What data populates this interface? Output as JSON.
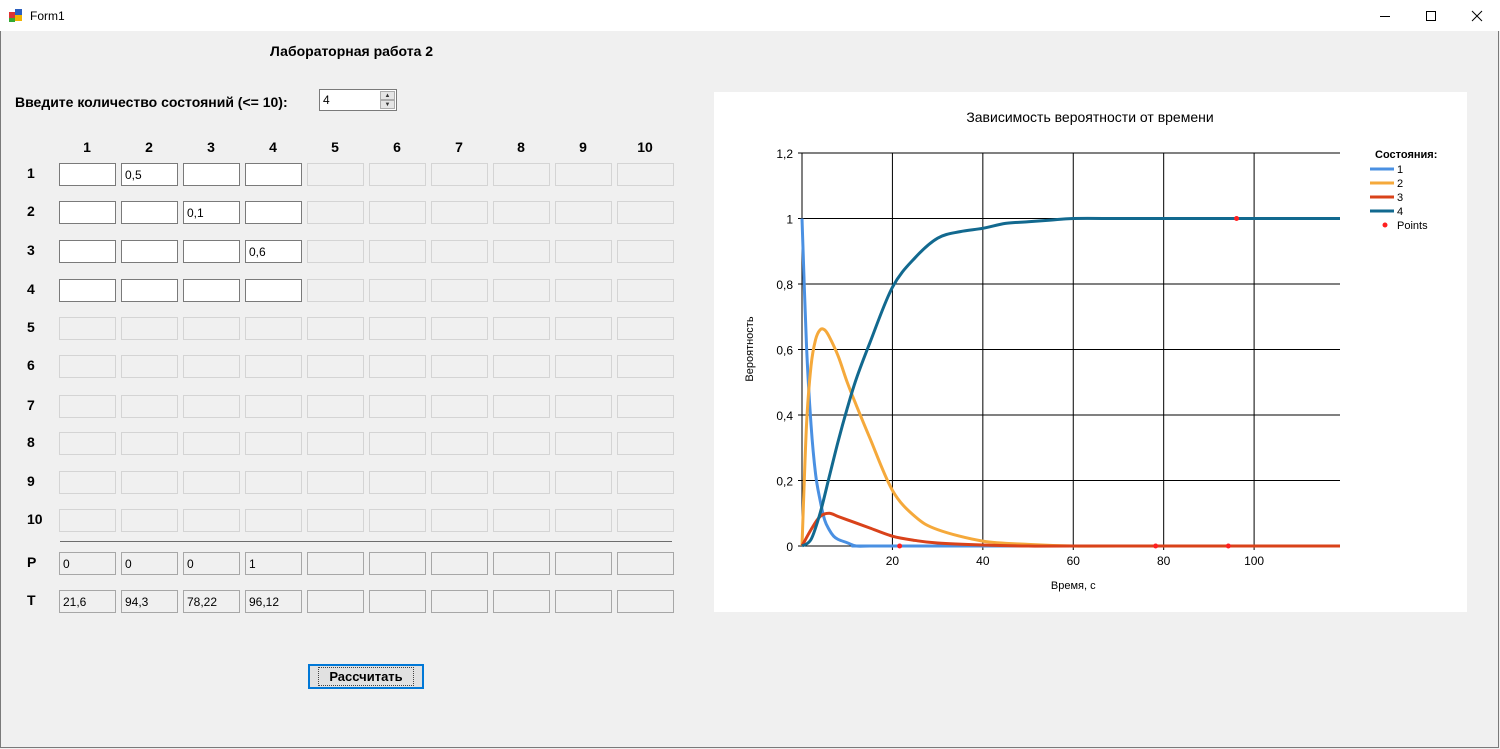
{
  "window": {
    "title": "Form1",
    "controls": {
      "minimize": "minimize-icon",
      "maximize": "maximize-icon",
      "close": "close-icon"
    }
  },
  "form": {
    "lab_title": "Лабораторная работа 2",
    "prompt": "Введите количество состояний (<= 10):",
    "states_count": "4",
    "col_headers": [
      "1",
      "2",
      "3",
      "4",
      "5",
      "6",
      "7",
      "8",
      "9",
      "10"
    ],
    "row_headers": [
      "1",
      "2",
      "3",
      "4",
      "5",
      "6",
      "7",
      "8",
      "9",
      "10"
    ],
    "active_size": 4,
    "matrix": [
      [
        "",
        "0,5",
        "",
        ""
      ],
      [
        "",
        "",
        "0,1",
        ""
      ],
      [
        "",
        "",
        "",
        "0,6"
      ],
      [
        "",
        "",
        "",
        ""
      ]
    ],
    "p_label": "P",
    "t_label": "T",
    "p_values": [
      "0",
      "0",
      "0",
      "1",
      "",
      "",
      "",
      "",
      "",
      ""
    ],
    "t_values": [
      "21,6",
      "94,3",
      "78,22",
      "96,12",
      "",
      "",
      "",
      "",
      "",
      ""
    ],
    "calc_button": "Рассчитать"
  },
  "chart_data": {
    "type": "line",
    "title": "Зависимость вероятности от времени",
    "xlabel": "Время, с",
    "ylabel": "Вероятность",
    "xlim": [
      0,
      119
    ],
    "ylim": [
      0,
      1.2
    ],
    "x_ticks": [
      "20",
      "40",
      "60",
      "80",
      "100"
    ],
    "y_ticks": [
      "0",
      "0,2",
      "0,4",
      "0,6",
      "0,8",
      "1",
      "1,2"
    ],
    "grid": true,
    "legend_title": "Состояния:",
    "legend_position": "top-right",
    "series": [
      {
        "name": "1",
        "color": "#4a90e2",
        "x": [
          0,
          1,
          2,
          3,
          4,
          5,
          6,
          7,
          8,
          10,
          12,
          15,
          20,
          119
        ],
        "y": [
          1,
          0.61,
          0.37,
          0.22,
          0.14,
          0.08,
          0.05,
          0.03,
          0.02,
          0.01,
          0,
          0,
          0,
          0
        ]
      },
      {
        "name": "2",
        "color": "#f5a93b",
        "x": [
          0,
          1,
          2,
          3,
          4,
          5,
          6,
          8,
          10,
          12,
          15,
          20,
          25,
          30,
          40,
          50,
          60,
          70,
          119
        ],
        "y": [
          0,
          0.37,
          0.55,
          0.63,
          0.66,
          0.66,
          0.64,
          0.58,
          0.5,
          0.43,
          0.33,
          0.17,
          0.09,
          0.05,
          0.015,
          0.005,
          0,
          0,
          0
        ]
      },
      {
        "name": "3",
        "color": "#d9421a",
        "x": [
          0,
          2,
          4,
          6,
          8,
          10,
          12,
          15,
          20,
          25,
          30,
          40,
          50,
          60,
          119
        ],
        "y": [
          0,
          0.05,
          0.09,
          0.1,
          0.09,
          0.08,
          0.07,
          0.055,
          0.03,
          0.017,
          0.009,
          0.003,
          0,
          0,
          0
        ]
      },
      {
        "name": "4",
        "color": "#12698f",
        "x": [
          0,
          2,
          4,
          6,
          8,
          10,
          12,
          15,
          20,
          25,
          30,
          35,
          40,
          45,
          50,
          55,
          60,
          70,
          80,
          119
        ],
        "y": [
          0,
          0.02,
          0.1,
          0.21,
          0.32,
          0.42,
          0.51,
          0.62,
          0.79,
          0.88,
          0.94,
          0.96,
          0.97,
          0.985,
          0.99,
          0.995,
          1,
          1,
          1,
          1
        ]
      },
      {
        "name": "Points",
        "color": "#ff2020",
        "type": "scatter",
        "x": [
          21.6,
          78.22,
          94.3,
          96.12
        ],
        "y": [
          0,
          0,
          0,
          1
        ]
      }
    ]
  }
}
